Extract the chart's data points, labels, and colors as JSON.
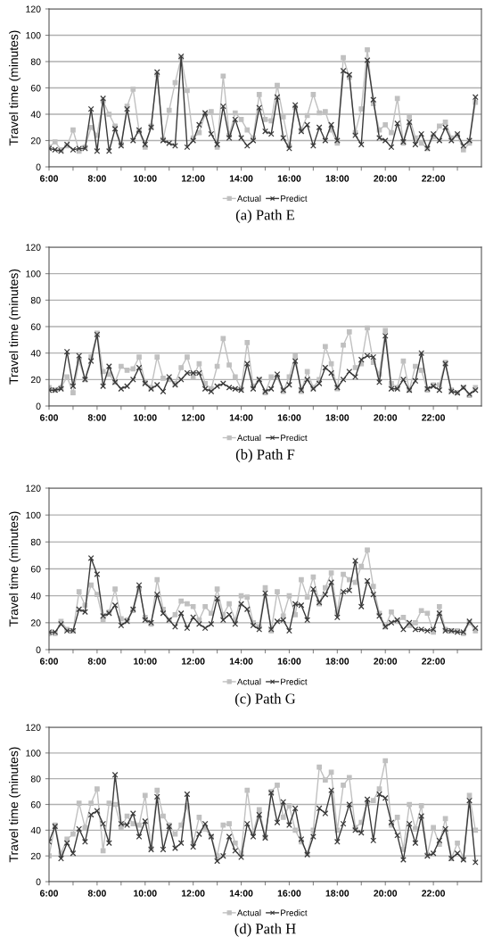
{
  "chart_data": [
    {
      "type": "line",
      "title": "(a) Path E",
      "ylabel": "Travel time (minutes)",
      "legend": "bottom",
      "grid": "y",
      "xlim": [
        6,
        24
      ],
      "ylim": [
        0,
        120
      ],
      "yticks": [
        0,
        20,
        40,
        60,
        80,
        100,
        120
      ],
      "xticks": [
        {
          "value": 6,
          "label": "6:00"
        },
        {
          "value": 7,
          "label": null
        },
        {
          "value": 8,
          "label": "8:00"
        },
        {
          "value": 9,
          "label": null
        },
        {
          "value": 10,
          "label": "10:00"
        },
        {
          "value": 11,
          "label": null
        },
        {
          "value": 12,
          "label": "12:00"
        },
        {
          "value": 13,
          "label": null
        },
        {
          "value": 14,
          "label": "14:00"
        },
        {
          "value": 15,
          "label": null
        },
        {
          "value": 16,
          "label": "16:00"
        },
        {
          "value": 17,
          "label": null
        },
        {
          "value": 18,
          "label": "18:00"
        },
        {
          "value": 19,
          "label": null
        },
        {
          "value": 20,
          "label": "20:00"
        },
        {
          "value": 21,
          "label": null
        },
        {
          "value": 22,
          "label": "22:00"
        },
        {
          "value": 23,
          "label": null
        }
      ],
      "x": [
        6,
        6.25,
        6.5,
        6.75,
        7,
        7.25,
        7.5,
        7.75,
        8,
        8.25,
        8.5,
        8.75,
        9,
        9.25,
        9.5,
        9.75,
        10,
        10.25,
        10.5,
        10.75,
        11,
        11.25,
        11.5,
        11.75,
        12,
        12.25,
        12.5,
        12.75,
        13,
        13.25,
        13.5,
        13.75,
        14,
        14.25,
        14.5,
        14.75,
        15,
        15.25,
        15.5,
        15.75,
        16,
        16.25,
        16.5,
        16.75,
        17,
        17.25,
        17.5,
        17.75,
        18,
        18.25,
        18.5,
        18.75,
        19,
        19.25,
        19.5,
        19.75,
        20,
        20.25,
        20.5,
        20.75,
        21,
        21.25,
        21.5,
        21.75,
        22,
        22.25,
        22.5,
        22.75,
        23,
        23.25,
        23.5,
        23.75
      ],
      "series": [
        {
          "name": "Actual",
          "color": "#c0c0c0",
          "marker": "square",
          "values": [
            15,
            19,
            13,
            16,
            28,
            12,
            15,
            30,
            24,
            50,
            40,
            31,
            17,
            46,
            59,
            27,
            15,
            31,
            70,
            21,
            43,
            64,
            83,
            58,
            22,
            26,
            40,
            42,
            15,
            69,
            24,
            41,
            36,
            28,
            22,
            55,
            36,
            35,
            62,
            38,
            16,
            45,
            28,
            39,
            55,
            41,
            42,
            28,
            18,
            83,
            68,
            26,
            44,
            89,
            48,
            28,
            32,
            26,
            52,
            18,
            38,
            22,
            18,
            14,
            23,
            31,
            34,
            22,
            24,
            13,
            18,
            49
          ]
        },
        {
          "name": "Predict",
          "color": "#3a3a3a",
          "marker": "cross",
          "values": [
            14,
            13,
            12,
            17,
            13,
            14,
            14,
            44,
            12,
            52,
            12,
            29,
            16,
            44,
            20,
            28,
            17,
            30,
            72,
            20,
            18,
            16,
            84,
            15,
            20,
            32,
            41,
            25,
            17,
            46,
            22,
            36,
            22,
            16,
            20,
            45,
            27,
            25,
            53,
            22,
            14,
            47,
            27,
            32,
            16,
            30,
            20,
            32,
            20,
            73,
            70,
            24,
            17,
            81,
            51,
            22,
            20,
            15,
            33,
            19,
            34,
            17,
            25,
            14,
            25,
            20,
            30,
            20,
            25,
            16,
            20,
            53
          ]
        }
      ]
    },
    {
      "type": "line",
      "title": "(b) Path F",
      "ylabel": "Travel time (minutes)",
      "legend": "bottom",
      "grid": "y",
      "xlim": [
        6,
        24
      ],
      "ylim": [
        0,
        120
      ],
      "yticks": [
        0,
        20,
        40,
        60,
        80,
        100,
        120
      ],
      "xticks": [
        {
          "value": 6,
          "label": "6:00"
        },
        {
          "value": 7,
          "label": null
        },
        {
          "value": 8,
          "label": "8:00"
        },
        {
          "value": 9,
          "label": null
        },
        {
          "value": 10,
          "label": "10:00"
        },
        {
          "value": 11,
          "label": null
        },
        {
          "value": 12,
          "label": "12:00"
        },
        {
          "value": 13,
          "label": null
        },
        {
          "value": 14,
          "label": "14:00"
        },
        {
          "value": 15,
          "label": null
        },
        {
          "value": 16,
          "label": "16:00"
        },
        {
          "value": 17,
          "label": null
        },
        {
          "value": 18,
          "label": "18:00"
        },
        {
          "value": 19,
          "label": null
        },
        {
          "value": 20,
          "label": "20:00"
        },
        {
          "value": 21,
          "label": null
        },
        {
          "value": 22,
          "label": "22:00"
        },
        {
          "value": 23,
          "label": null
        }
      ],
      "x": [
        6,
        6.25,
        6.5,
        6.75,
        7,
        7.25,
        7.5,
        7.75,
        8,
        8.25,
        8.5,
        8.75,
        9,
        9.25,
        9.5,
        9.75,
        10,
        10.25,
        10.5,
        10.75,
        11,
        11.25,
        11.5,
        11.75,
        12,
        12.25,
        12.5,
        12.75,
        13,
        13.25,
        13.5,
        13.75,
        14,
        14.25,
        14.5,
        14.75,
        15,
        15.25,
        15.5,
        15.75,
        16,
        16.25,
        16.5,
        16.75,
        17,
        17.25,
        17.5,
        17.75,
        18,
        18.25,
        18.5,
        18.75,
        19,
        19.25,
        19.5,
        19.75,
        20,
        20.25,
        20.5,
        20.75,
        21,
        21.25,
        21.5,
        21.75,
        22,
        22.25,
        22.5,
        22.75,
        23,
        23.25,
        23.5,
        23.75
      ],
      "series": [
        {
          "name": "Actual",
          "color": "#c0c0c0",
          "marker": "square",
          "values": [
            14,
            12,
            14,
            22,
            10,
            34,
            20,
            37,
            55,
            26,
            24,
            18,
            30,
            27,
            28,
            37,
            18,
            14,
            37,
            21,
            20,
            17,
            29,
            37,
            22,
            32,
            17,
            13,
            30,
            51,
            31,
            22,
            13,
            48,
            15,
            20,
            10,
            22,
            22,
            11,
            22,
            38,
            11,
            26,
            14,
            20,
            45,
            32,
            13,
            46,
            56,
            29,
            32,
            59,
            33,
            24,
            57,
            17,
            14,
            34,
            12,
            30,
            27,
            12,
            16,
            16,
            33,
            12,
            10,
            14,
            8,
            14
          ]
        },
        {
          "name": "Predict",
          "color": "#3a3a3a",
          "marker": "cross",
          "values": [
            12,
            12,
            13,
            41,
            15,
            38,
            20,
            34,
            54,
            15,
            30,
            18,
            13,
            15,
            20,
            29,
            17,
            13,
            16,
            11,
            22,
            16,
            20,
            25,
            25,
            25,
            13,
            11,
            15,
            17,
            14,
            13,
            12,
            32,
            13,
            20,
            11,
            13,
            24,
            12,
            16,
            34,
            12,
            20,
            13,
            17,
            29,
            25,
            14,
            20,
            26,
            22,
            35,
            38,
            37,
            18,
            53,
            13,
            13,
            20,
            12,
            19,
            40,
            13,
            15,
            12,
            32,
            11,
            10,
            14,
            9,
            12
          ]
        }
      ]
    },
    {
      "type": "line",
      "title": "(c) Path G",
      "ylabel": "Travel time (minutes)",
      "legend": "bottom",
      "grid": "y",
      "xlim": [
        6,
        24
      ],
      "ylim": [
        0,
        120
      ],
      "yticks": [
        0,
        20,
        40,
        60,
        80,
        100,
        120
      ],
      "xticks": [
        {
          "value": 6,
          "label": "6:00"
        },
        {
          "value": 7,
          "label": null
        },
        {
          "value": 8,
          "label": "8:00"
        },
        {
          "value": 9,
          "label": null
        },
        {
          "value": 10,
          "label": "10:00"
        },
        {
          "value": 11,
          "label": null
        },
        {
          "value": 12,
          "label": "12:00"
        },
        {
          "value": 13,
          "label": null
        },
        {
          "value": 14,
          "label": "14:00"
        },
        {
          "value": 15,
          "label": null
        },
        {
          "value": 16,
          "label": "16:00"
        },
        {
          "value": 17,
          "label": null
        },
        {
          "value": 18,
          "label": "18:00"
        },
        {
          "value": 19,
          "label": null
        },
        {
          "value": 20,
          "label": "20:00"
        },
        {
          "value": 21,
          "label": null
        },
        {
          "value": 22,
          "label": "22:00"
        },
        {
          "value": 23,
          "label": null
        }
      ],
      "x": [
        6,
        6.25,
        6.5,
        6.75,
        7,
        7.25,
        7.5,
        7.75,
        8,
        8.25,
        8.5,
        8.75,
        9,
        9.25,
        9.5,
        9.75,
        10,
        10.25,
        10.5,
        10.75,
        11,
        11.25,
        11.5,
        11.75,
        12,
        12.25,
        12.5,
        12.75,
        13,
        13.25,
        13.5,
        13.75,
        14,
        14.25,
        14.5,
        14.75,
        15,
        15.25,
        15.5,
        15.75,
        16,
        16.25,
        16.5,
        16.75,
        17,
        17.25,
        17.5,
        17.75,
        18,
        18.25,
        18.5,
        18.75,
        19,
        19.25,
        19.5,
        19.75,
        20,
        20.25,
        20.5,
        20.75,
        21,
        21.25,
        21.5,
        21.75,
        22,
        22.25,
        22.5,
        22.75,
        23,
        23.25,
        23.5,
        23.75
      ],
      "series": [
        {
          "name": "Actual",
          "color": "#c0c0c0",
          "marker": "square",
          "values": [
            12,
            12,
            21,
            15,
            14,
            43,
            33,
            48,
            41,
            22,
            28,
            45,
            23,
            22,
            29,
            45,
            24,
            19,
            52,
            30,
            22,
            26,
            36,
            34,
            32,
            22,
            32,
            27,
            45,
            26,
            34,
            22,
            40,
            39,
            20,
            17,
            46,
            14,
            43,
            25,
            40,
            26,
            52,
            39,
            54,
            34,
            46,
            57,
            28,
            56,
            52,
            50,
            62,
            74,
            47,
            27,
            17,
            28,
            21,
            24,
            18,
            20,
            29,
            27,
            13,
            32,
            15,
            14,
            14,
            12,
            20,
            14
          ]
        },
        {
          "name": "Predict",
          "color": "#3a3a3a",
          "marker": "cross",
          "values": [
            13,
            13,
            19,
            14,
            14,
            30,
            28,
            68,
            56,
            25,
            27,
            33,
            18,
            21,
            30,
            48,
            22,
            20,
            41,
            27,
            22,
            17,
            27,
            16,
            24,
            19,
            16,
            19,
            38,
            22,
            26,
            19,
            34,
            30,
            18,
            15,
            42,
            15,
            21,
            22,
            14,
            34,
            33,
            22,
            45,
            35,
            41,
            50,
            24,
            43,
            44,
            66,
            32,
            51,
            41,
            25,
            17,
            20,
            22,
            15,
            20,
            15,
            15,
            14,
            15,
            27,
            14,
            14,
            13,
            13,
            21,
            16
          ]
        }
      ]
    },
    {
      "type": "line",
      "title": "(d) Path H",
      "ylabel": "Travel time (minutes)",
      "legend": "bottom",
      "grid": "y",
      "xlim": [
        6,
        24
      ],
      "ylim": [
        0,
        120
      ],
      "yticks": [
        0,
        20,
        40,
        60,
        80,
        100,
        120
      ],
      "xticks": [
        {
          "value": 6,
          "label": "6:00"
        },
        {
          "value": 7,
          "label": null
        },
        {
          "value": 8,
          "label": "8:00"
        },
        {
          "value": 9,
          "label": null
        },
        {
          "value": 10,
          "label": "10:00"
        },
        {
          "value": 11,
          "label": null
        },
        {
          "value": 12,
          "label": "12:00"
        },
        {
          "value": 13,
          "label": null
        },
        {
          "value": 14,
          "label": "14:00"
        },
        {
          "value": 15,
          "label": null
        },
        {
          "value": 16,
          "label": "16:00"
        },
        {
          "value": 17,
          "label": null
        },
        {
          "value": 18,
          "label": "18:00"
        },
        {
          "value": 19,
          "label": null
        },
        {
          "value": 20,
          "label": "20:00"
        },
        {
          "value": 21,
          "label": null
        },
        {
          "value": 22,
          "label": "22:00"
        },
        {
          "value": 23,
          "label": null
        }
      ],
      "x": [
        6,
        6.25,
        6.5,
        6.75,
        7,
        7.25,
        7.5,
        7.75,
        8,
        8.25,
        8.5,
        8.75,
        9,
        9.25,
        9.5,
        9.75,
        10,
        10.25,
        10.5,
        10.75,
        11,
        11.25,
        11.5,
        11.75,
        12,
        12.25,
        12.5,
        12.75,
        13,
        13.25,
        13.5,
        13.75,
        14,
        14.25,
        14.5,
        14.75,
        15,
        15.25,
        15.5,
        15.75,
        16,
        16.25,
        16.5,
        16.75,
        17,
        17.25,
        17.5,
        17.75,
        18,
        18.25,
        18.5,
        18.75,
        19,
        19.25,
        19.5,
        19.75,
        20,
        20.25,
        20.5,
        20.75,
        21,
        21.25,
        21.5,
        21.75,
        22,
        22.25,
        22.5,
        22.75,
        23,
        23.25,
        23.5,
        23.75
      ],
      "series": [
        {
          "name": "Actual",
          "color": "#c0c0c0",
          "marker": "square",
          "values": [
            20,
            44,
            22,
            33,
            37,
            61,
            42,
            61,
            72,
            24,
            61,
            60,
            42,
            51,
            45,
            44,
            67,
            26,
            71,
            51,
            44,
            37,
            44,
            59,
            30,
            50,
            41,
            35,
            20,
            44,
            45,
            30,
            22,
            71,
            38,
            56,
            35,
            70,
            75,
            50,
            59,
            40,
            31,
            22,
            40,
            89,
            79,
            85,
            40,
            75,
            81,
            42,
            46,
            61,
            63,
            72,
            94,
            44,
            50,
            25,
            60,
            41,
            59,
            21,
            42,
            29,
            49,
            18,
            30,
            18,
            67,
            40
          ]
        },
        {
          "name": "Predict",
          "color": "#3a3a3a",
          "marker": "cross",
          "values": [
            31,
            43,
            18,
            30,
            22,
            41,
            31,
            52,
            55,
            45,
            30,
            83,
            45,
            44,
            53,
            35,
            47,
            25,
            66,
            25,
            43,
            26,
            30,
            68,
            27,
            37,
            45,
            35,
            16,
            20,
            35,
            24,
            19,
            45,
            35,
            52,
            34,
            69,
            46,
            62,
            44,
            57,
            33,
            21,
            35,
            57,
            53,
            71,
            31,
            45,
            60,
            40,
            38,
            64,
            32,
            68,
            65,
            46,
            36,
            17,
            45,
            30,
            51,
            20,
            22,
            32,
            41,
            18,
            22,
            17,
            63,
            15
          ]
        }
      ]
    }
  ]
}
